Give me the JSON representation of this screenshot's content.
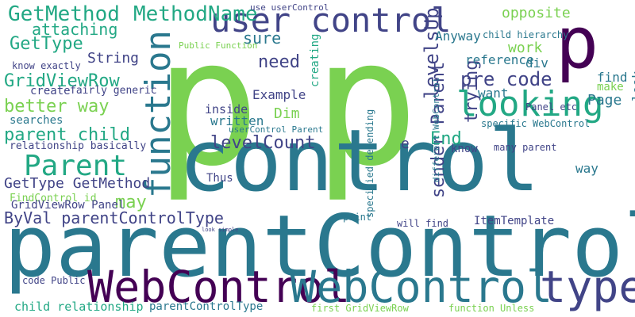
{
  "words": [
    "p",
    "p",
    "p",
    "control",
    "parentControl",
    "WebControl",
    "WebControl",
    "type",
    "function",
    "user control",
    "looking",
    "Parent",
    "GetMethod",
    "MethodName",
    "GridViewRow",
    "better way",
    "parent child",
    "levelCount",
    "need",
    "levelsUp",
    "GetType",
    "GetType GetMethod",
    "ByVal parentControlType",
    "may",
    "pre code",
    "code pre",
    "sender Parent",
    "trying",
    "attaching",
    "sure",
    "String",
    "Dim",
    "Example",
    "Page",
    "opposite",
    "work",
    "reference",
    "find",
    "look",
    "End",
    "div",
    "want",
    "way",
    "Anyway",
    "creating",
    "specified depending",
    "different WebControl",
    "ItemTemplate",
    "point",
    "will find",
    "FindControl id",
    "GridViewRow Panel",
    "relationship basically",
    "searches",
    "create",
    "fairly generic",
    "know exactly",
    "child relationship",
    "parentControlType",
    "first GridViewRow",
    "function Unless",
    "code Public",
    "inside",
    "written",
    "userControl Parent",
    "use userControl",
    "Public Function",
    "Panel etc",
    "specific WebControl",
    "know",
    "many parent",
    "child hierarchy",
    "make",
    "Thus",
    "e",
    "look simple"
  ],
  "palette": {
    "yellow_green": "#7ad151",
    "green": "#22a884",
    "teal": "#2a788e",
    "blue": "#414487",
    "purple": "#440154",
    "yellow": "#fde725"
  }
}
